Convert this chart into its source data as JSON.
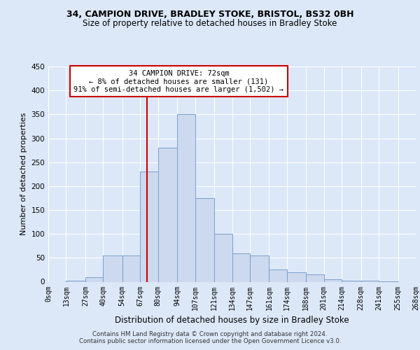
{
  "title1": "34, CAMPION DRIVE, BRADLEY STOKE, BRISTOL, BS32 0BH",
  "title2": "Size of property relative to detached houses in Bradley Stoke",
  "xlabel": "Distribution of detached houses by size in Bradley Stoke",
  "ylabel": "Number of detached properties",
  "annotation_line1": "34 CAMPION DRIVE: 72sqm",
  "annotation_line2": "← 8% of detached houses are smaller (131)",
  "annotation_line3": "91% of semi-detached houses are larger (1,502) →",
  "property_size": 72,
  "footer1": "Contains HM Land Registry data © Crown copyright and database right 2024.",
  "footer2": "Contains public sector information licensed under the Open Government Licence v3.0.",
  "bin_edges": [
    0,
    13,
    27,
    40,
    54,
    67,
    80,
    94,
    107,
    121,
    134,
    147,
    161,
    174,
    188,
    201,
    214,
    228,
    241,
    255,
    268
  ],
  "bar_heights": [
    0,
    2,
    10,
    55,
    55,
    230,
    280,
    350,
    175,
    100,
    60,
    55,
    25,
    20,
    15,
    5,
    2,
    2,
    1,
    0
  ],
  "bar_color": "#ccd9ee",
  "bar_edge_color": "#7a9fcf",
  "line_color": "#cc0000",
  "annotation_box_color": "#ffffff",
  "annotation_box_edge": "#cc0000",
  "ylim": [
    0,
    450
  ],
  "yticks": [
    0,
    50,
    100,
    150,
    200,
    250,
    300,
    350,
    400,
    450
  ],
  "axes_background": "#dce8f8",
  "fig_background": "#dce8f8"
}
